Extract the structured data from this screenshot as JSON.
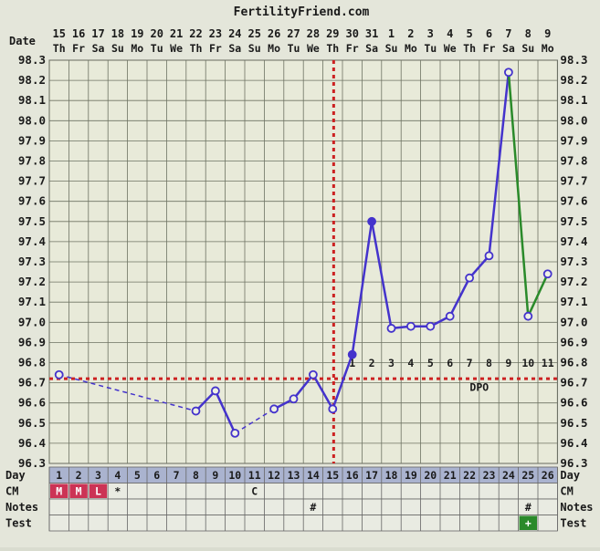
{
  "chart_data": {
    "type": "line",
    "title": "FertilityFriend.com",
    "date_label": "Date",
    "dates": [
      "15",
      "16",
      "17",
      "18",
      "19",
      "20",
      "21",
      "22",
      "23",
      "24",
      "25",
      "26",
      "27",
      "28",
      "29",
      "30",
      "31",
      "1",
      "2",
      "3",
      "4",
      "5",
      "6",
      "7",
      "8",
      "9"
    ],
    "weekdays": [
      "Th",
      "Fr",
      "Sa",
      "Su",
      "Mo",
      "Tu",
      "We",
      "Th",
      "Fr",
      "Sa",
      "Su",
      "Mo",
      "Tu",
      "We",
      "Th",
      "Fr",
      "Sa",
      "Su",
      "Mo",
      "Tu",
      "We",
      "Th",
      "Fr",
      "Sa",
      "Su",
      "Mo"
    ],
    "y_ticks": [
      "98.3",
      "98.2",
      "98.1",
      "98.0",
      "97.9",
      "97.8",
      "97.7",
      "97.6",
      "97.5",
      "97.4",
      "97.3",
      "97.2",
      "97.1",
      "97.0",
      "96.9",
      "96.8",
      "96.7",
      "96.6",
      "96.5",
      "96.4",
      "96.3"
    ],
    "ylim": [
      96.3,
      98.3
    ],
    "days": [
      1,
      2,
      3,
      4,
      5,
      6,
      7,
      8,
      9,
      10,
      11,
      12,
      13,
      14,
      15,
      16,
      17,
      18,
      19,
      20,
      21,
      22,
      23,
      24,
      25,
      26
    ],
    "temps": [
      96.74,
      null,
      null,
      null,
      null,
      null,
      null,
      96.56,
      96.66,
      96.45,
      null,
      96.57,
      96.62,
      96.74,
      96.57,
      96.84,
      97.5,
      96.97,
      96.98,
      96.98,
      97.03,
      97.22,
      97.33,
      98.24,
      97.03,
      97.24
    ],
    "open_circle_days": [
      1,
      8,
      9,
      10,
      12,
      13,
      14,
      15,
      18,
      19,
      20,
      21,
      22,
      23,
      24,
      25,
      26
    ],
    "filled_circle_days": [
      16,
      17
    ],
    "cycle_color": "#4433cc",
    "after_color": "#2a8a2a",
    "coverline": 96.72,
    "coverline_color": "#cc2222",
    "ovulation_day": 15,
    "dpo_label": "DPO",
    "dpo": [
      {
        "day": 16,
        "label": "1"
      },
      {
        "day": 17,
        "label": "2"
      },
      {
        "day": 18,
        "label": "3"
      },
      {
        "day": 19,
        "label": "4"
      },
      {
        "day": 20,
        "label": "5"
      },
      {
        "day": 21,
        "label": "6"
      },
      {
        "day": 22,
        "label": "7"
      },
      {
        "day": 23,
        "label": "8"
      },
      {
        "day": 24,
        "label": "9"
      },
      {
        "day": 25,
        "label": "10"
      },
      {
        "day": 26,
        "label": "11"
      }
    ],
    "rows": {
      "day_label": "Day",
      "cm_label": "CM",
      "notes_label": "Notes",
      "test_label": "Test",
      "cm": [
        {
          "day": 1,
          "text": "M",
          "color": "#cc3355"
        },
        {
          "day": 2,
          "text": "M",
          "color": "#cc3355"
        },
        {
          "day": 3,
          "text": "L",
          "color": "#cc3355"
        },
        {
          "day": 4,
          "text": "*",
          "color": ""
        },
        {
          "day": 11,
          "text": "C",
          "color": ""
        }
      ],
      "notes": [
        {
          "day": 14,
          "text": "#"
        },
        {
          "day": 25,
          "text": "#"
        }
      ],
      "test": [
        {
          "day": 25,
          "text": "+",
          "color": "#2a8a2a"
        }
      ]
    }
  }
}
